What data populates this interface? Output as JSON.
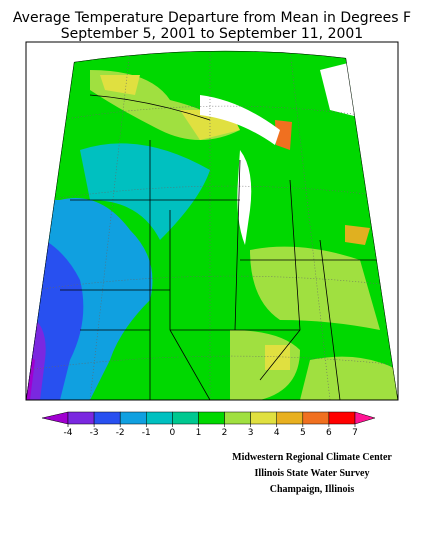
{
  "header": {
    "title": "Average Temperature Departure from Mean in Degrees F",
    "subtitle": "September 5, 2001 to September 11, 2001"
  },
  "legend": {
    "ticks": [
      -4,
      -3,
      -2,
      -1,
      0,
      1,
      2,
      3,
      4,
      5,
      6,
      7
    ],
    "colors": [
      "#a000d0",
      "#7a28e0",
      "#2850f0",
      "#10a0e0",
      "#00c0c0",
      "#00c890",
      "#00d800",
      "#a0e040",
      "#e0e040",
      "#e8b020",
      "#f07020",
      "#ff0000",
      "#ff1493"
    ]
  },
  "credits": [
    "Midwestern Regional Climate Center",
    "Illinois State Water Survey",
    "Champaign, Illinois"
  ]
}
